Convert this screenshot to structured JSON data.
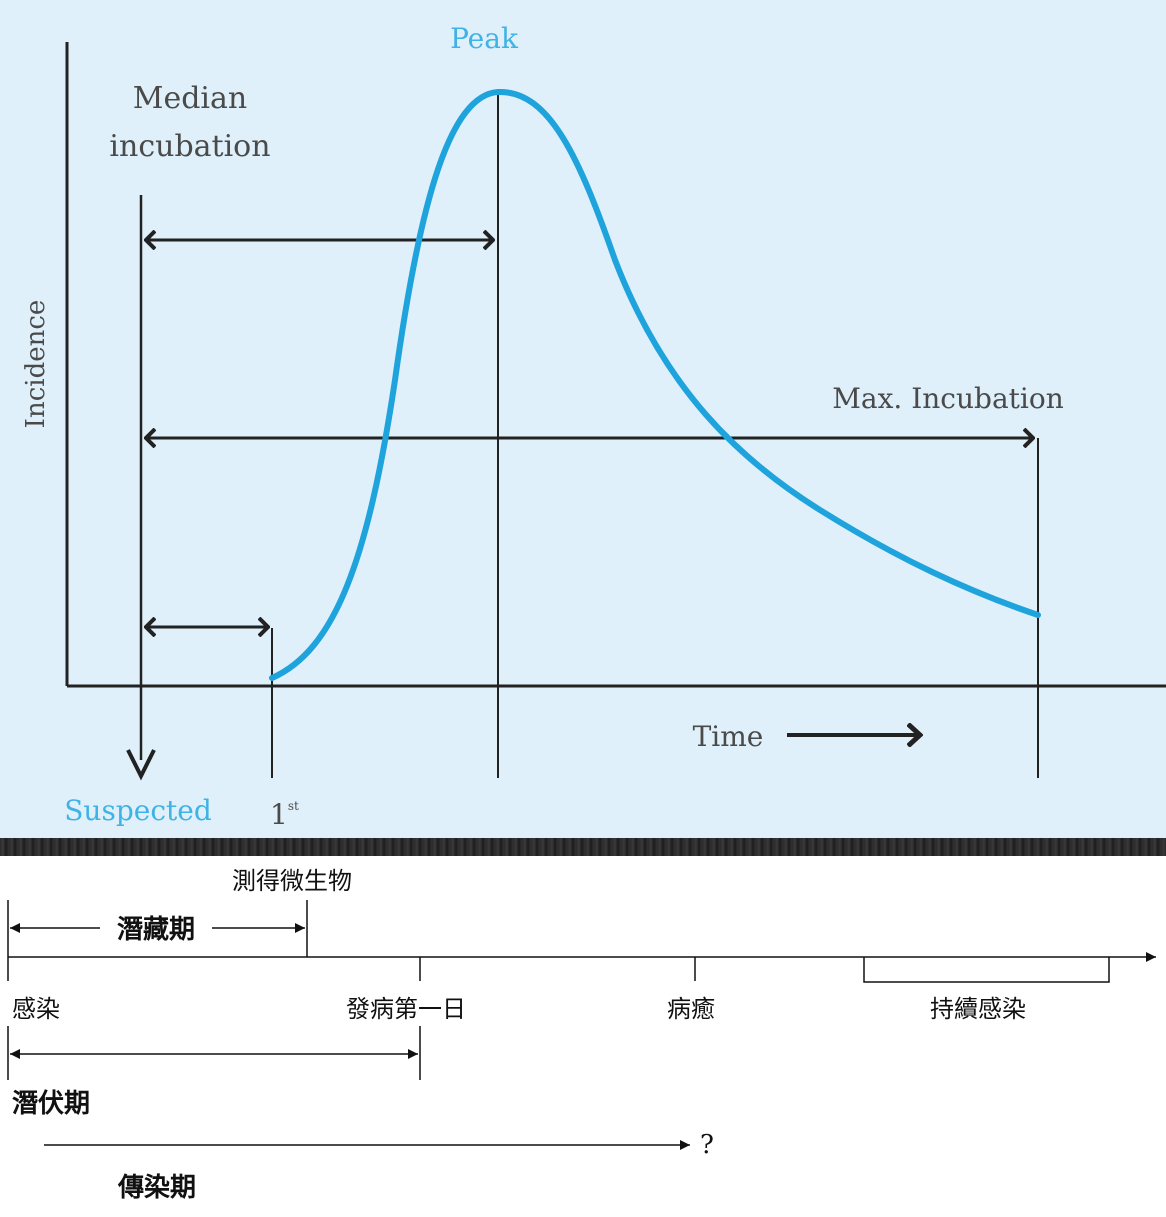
{
  "epi_curve": {
    "y_axis_label": "Incidence",
    "peak_label": "Peak",
    "median_label_line1": "Median",
    "median_label_line2": "incubation",
    "max_label": "Max. Incubation",
    "time_label": "Time",
    "suspected_label": "Suspected",
    "first_label": "1",
    "first_label_sup": "st",
    "curve_color": "#1fa3dc",
    "suspected_color": "#3fb2e6"
  },
  "timeline": {
    "detect_label": "測得微生物",
    "latent_label": "潛藏期",
    "infection_label": "感染",
    "onset_label": "發病第一日",
    "recovery_label": "病癒",
    "persistent_label": "持續感染",
    "incubation_label": "潛伏期",
    "question_label": "?",
    "infectious_label": "傳染期"
  }
}
